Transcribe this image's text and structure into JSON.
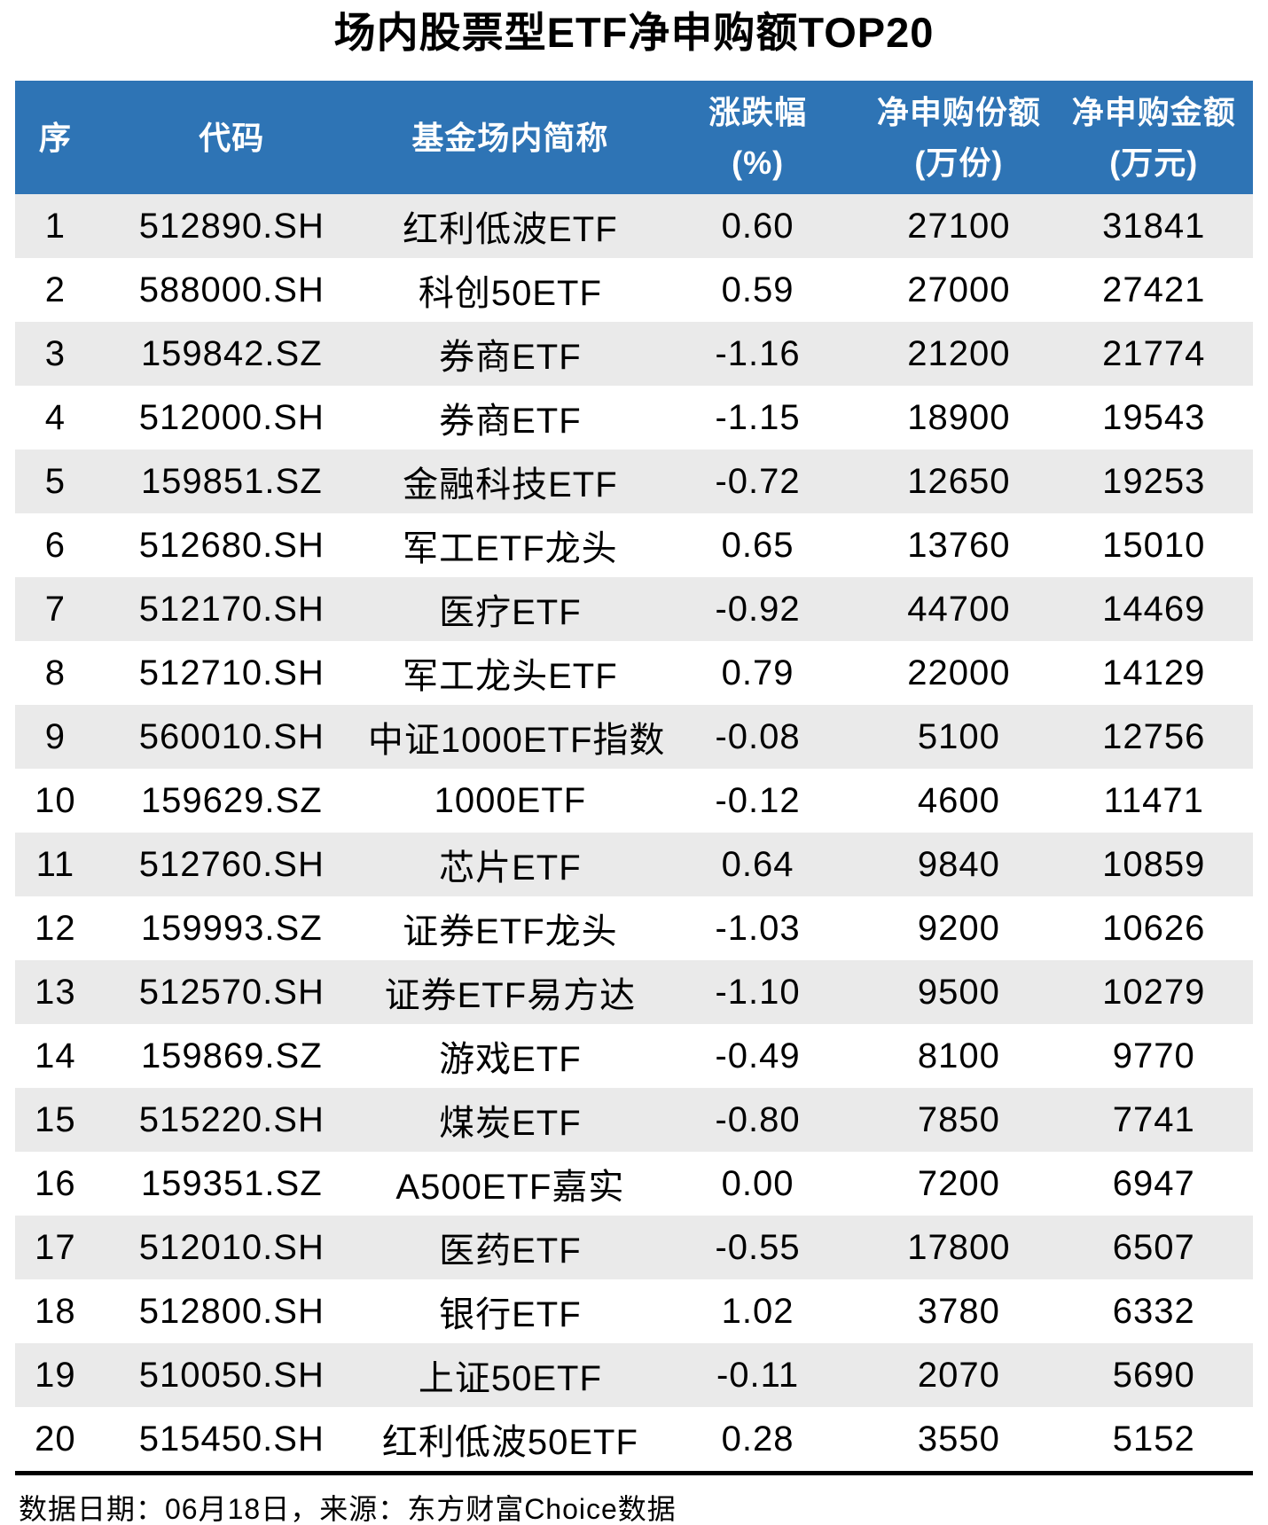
{
  "chart_data": {
    "type": "table",
    "title": "场内股票型ETF净申购额TOP20",
    "columns": [
      {
        "key": "rank",
        "label": "序",
        "line2": ""
      },
      {
        "key": "code",
        "label": "代码",
        "line2": ""
      },
      {
        "key": "fund_name",
        "label": "基金场内简称",
        "line2": ""
      },
      {
        "key": "change_pct",
        "label": "涨跌幅",
        "line2": "(%)"
      },
      {
        "key": "net_shares_wan",
        "label": "净申购份额",
        "line2": "(万份)"
      },
      {
        "key": "net_amount_wan",
        "label": "净申购金额",
        "line2": "(万元)"
      }
    ],
    "rows": [
      [
        "1",
        "512890.SH",
        "红利低波ETF",
        "0.60",
        "27100",
        "31841"
      ],
      [
        "2",
        "588000.SH",
        "科创50ETF",
        "0.59",
        "27000",
        "27421"
      ],
      [
        "3",
        "159842.SZ",
        "券商ETF",
        "-1.16",
        "21200",
        "21774"
      ],
      [
        "4",
        "512000.SH",
        "券商ETF",
        "-1.15",
        "18900",
        "19543"
      ],
      [
        "5",
        "159851.SZ",
        "金融科技ETF",
        "-0.72",
        "12650",
        "19253"
      ],
      [
        "6",
        "512680.SH",
        "军工ETF龙头",
        "0.65",
        "13760",
        "15010"
      ],
      [
        "7",
        "512170.SH",
        "医疗ETF",
        "-0.92",
        "44700",
        "14469"
      ],
      [
        "8",
        "512710.SH",
        "军工龙头ETF",
        "0.79",
        "22000",
        "14129"
      ],
      [
        "9",
        "560010.SH",
        "中证1000ETF指数",
        "-0.08",
        "5100",
        "12756"
      ],
      [
        "10",
        "159629.SZ",
        "1000ETF",
        "-0.12",
        "4600",
        "11471"
      ],
      [
        "11",
        "512760.SH",
        "芯片ETF",
        "0.64",
        "9840",
        "10859"
      ],
      [
        "12",
        "159993.SZ",
        "证券ETF龙头",
        "-1.03",
        "9200",
        "10626"
      ],
      [
        "13",
        "512570.SH",
        "证券ETF易方达",
        "-1.10",
        "9500",
        "10279"
      ],
      [
        "14",
        "159869.SZ",
        "游戏ETF",
        "-0.49",
        "8100",
        "9770"
      ],
      [
        "15",
        "515220.SH",
        "煤炭ETF",
        "-0.80",
        "7850",
        "7741"
      ],
      [
        "16",
        "159351.SZ",
        "A500ETF嘉实",
        "0.00",
        "7200",
        "6947"
      ],
      [
        "17",
        "512010.SH",
        "医药ETF",
        "-0.55",
        "17800",
        "6507"
      ],
      [
        "18",
        "512800.SH",
        "银行ETF",
        "1.02",
        "3780",
        "6332"
      ],
      [
        "19",
        "510050.SH",
        "上证50ETF",
        "-0.11",
        "2070",
        "5690"
      ],
      [
        "20",
        "515450.SH",
        "红利低波50ETF",
        "0.28",
        "3550",
        "5152"
      ]
    ],
    "layout": {
      "striped": true,
      "stripe_rows": "odd",
      "header_lines": 2
    }
  },
  "footer_note": "数据日期：06月18日，来源：东方财富Choice数据",
  "colors": {
    "header_bg": "#2E74B5",
    "header_text": "#FFFFFF",
    "stripe_bg": "#EAEAEA",
    "body_text": "#000000",
    "divider": "#000000"
  }
}
